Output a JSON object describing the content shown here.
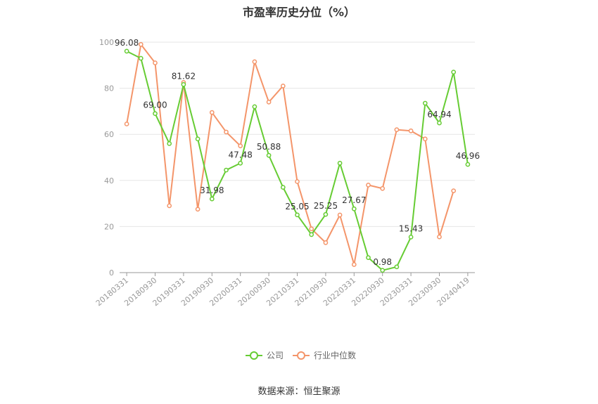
{
  "chart_data": {
    "type": "line",
    "title": "市盈率历史分位（%）",
    "source": "数据来源：恒生聚源",
    "ylim": [
      0,
      100
    ],
    "yticks": [
      "0",
      "20",
      "40",
      "60",
      "80",
      "100"
    ],
    "x_ticklabels": [
      "20180331",
      "20180930",
      "20190331",
      "20190930",
      "20200331",
      "20200930",
      "20210331",
      "20210930",
      "20220331",
      "20220930",
      "20230331",
      "20230930",
      "20240419"
    ],
    "x": [
      "20180331",
      "20180630",
      "20180930",
      "20181231",
      "20190331",
      "20190630",
      "20190930",
      "20191231",
      "20200331",
      "20200630",
      "20200930",
      "20201231",
      "20210331",
      "20210630",
      "20210930",
      "20211231",
      "20220331",
      "20220630",
      "20220930",
      "20221231",
      "20230331",
      "20230630",
      "20230930",
      "20231231",
      "20240419"
    ],
    "series": [
      {
        "name": "公司",
        "color": "#66cc33",
        "values": [
          96.08,
          93.0,
          69.0,
          56.0,
          81.62,
          58.0,
          31.98,
          44.5,
          47.48,
          72.0,
          50.88,
          37.0,
          25.05,
          16.5,
          25.25,
          47.5,
          27.67,
          6.5,
          0.98,
          2.5,
          15.43,
          73.5,
          64.94,
          87.0,
          46.96
        ],
        "labels": {
          "0": "96.08",
          "2": "69.00",
          "4": "81.62",
          "6": "31.98",
          "8": "47.48",
          "10": "50.88",
          "12": "25.05",
          "14": "25.25",
          "16": "27.67",
          "18": "0.98",
          "20": "15.43",
          "22": "64.94",
          "24": "46.96"
        }
      },
      {
        "name": "行业中位数",
        "color": "#f4956a",
        "values": [
          64.5,
          99.0,
          91.0,
          29.0,
          82.5,
          27.5,
          69.5,
          61.0,
          55.0,
          91.5,
          74.0,
          81.0,
          39.5,
          19.0,
          13.0,
          25.0,
          3.5,
          38.0,
          36.5,
          62.0,
          61.5,
          58.0,
          15.5,
          35.5,
          null
        ]
      }
    ],
    "grid": true,
    "legend": "bottom-center"
  }
}
